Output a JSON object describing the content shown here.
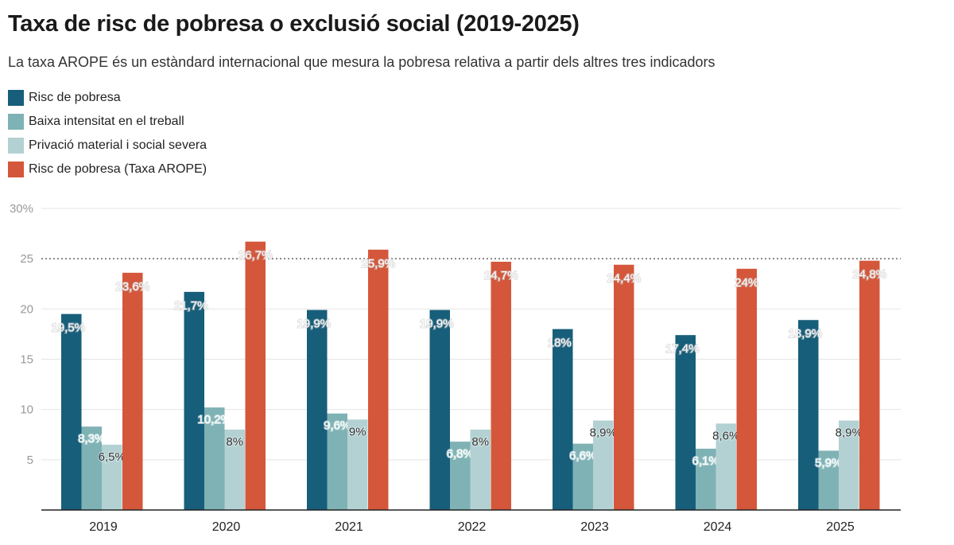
{
  "chart_data": {
    "type": "bar",
    "title": "Taxa de risc de pobresa o exclusió social (2019-2025)",
    "subtitle": "La taxa AROPE és un estàndard internacional que mesura la pobresa relativa a partir dels altres tres indicadors",
    "categories": [
      "2019",
      "2020",
      "2021",
      "2022",
      "2023",
      "2024",
      "2025"
    ],
    "series": [
      {
        "name": "Risc de pobresa",
        "color": "#175e7a",
        "values": [
          19.5,
          21.7,
          19.9,
          19.9,
          18,
          17.4,
          18.9
        ],
        "labels": [
          "19,5%",
          "21,7%",
          "19,9%",
          "19,9%",
          "18%",
          "17,4%",
          "18,9%"
        ]
      },
      {
        "name": "Baixa intensitat en el treball",
        "color": "#7fb2b5",
        "values": [
          8.3,
          10.2,
          9.6,
          6.8,
          6.6,
          6.1,
          5.9
        ],
        "labels": [
          "8,3%",
          "10,2%",
          "9,6%",
          "6,8%",
          "6,6%",
          "6,1%",
          "5,9%"
        ]
      },
      {
        "name": "Privació material i social severa",
        "color": "#b3d1d2",
        "values": [
          6.5,
          8,
          9,
          8,
          8.9,
          8.6,
          8.9
        ],
        "labels": [
          "6,5%",
          "8%",
          "9%",
          "8%",
          "8,9%",
          "8,6%",
          "8,9%"
        ]
      },
      {
        "name": "Risc de pobresa (Taxa AROPE)",
        "color": "#d4573b",
        "values": [
          23.6,
          26.7,
          25.9,
          24.7,
          24.4,
          24,
          24.8
        ],
        "labels": [
          "23,6%",
          "26,7%",
          "25,9%",
          "24,7%",
          "24,4%",
          "24%",
          "24,8%"
        ]
      }
    ],
    "ylim": [
      0,
      30
    ],
    "yticks": [
      5,
      10,
      15,
      20,
      25,
      30
    ],
    "ytick_labels": [
      "5",
      "10",
      "15",
      "20",
      "25",
      "30%"
    ],
    "reference_line": 25,
    "grid": true,
    "legend": "top-left"
  }
}
